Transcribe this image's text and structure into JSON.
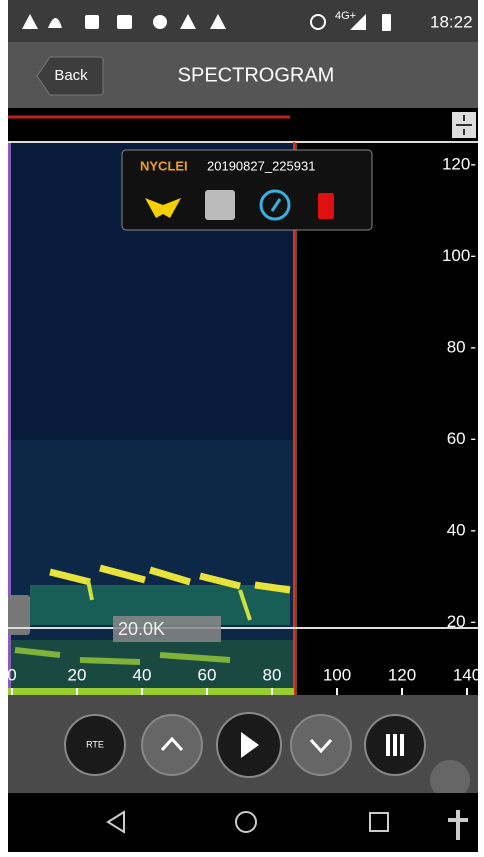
{
  "status_bar": {
    "network": "4G+",
    "time": "18:22"
  },
  "header": {
    "back": "Back",
    "title": "SPECTROGRAM"
  },
  "popup": {
    "species": "NYCLEI",
    "filename": "20190827_225931"
  },
  "spectrogram": {
    "y_labels": [
      "120-",
      "100-",
      "80 -",
      "60 -",
      "40 -",
      "20 -"
    ],
    "x_labels": [
      "0",
      "20",
      "40",
      "60",
      "80",
      "100",
      "120",
      "140"
    ],
    "threshold_label": "20.0K"
  },
  "controls": {
    "rte": "RTE"
  }
}
